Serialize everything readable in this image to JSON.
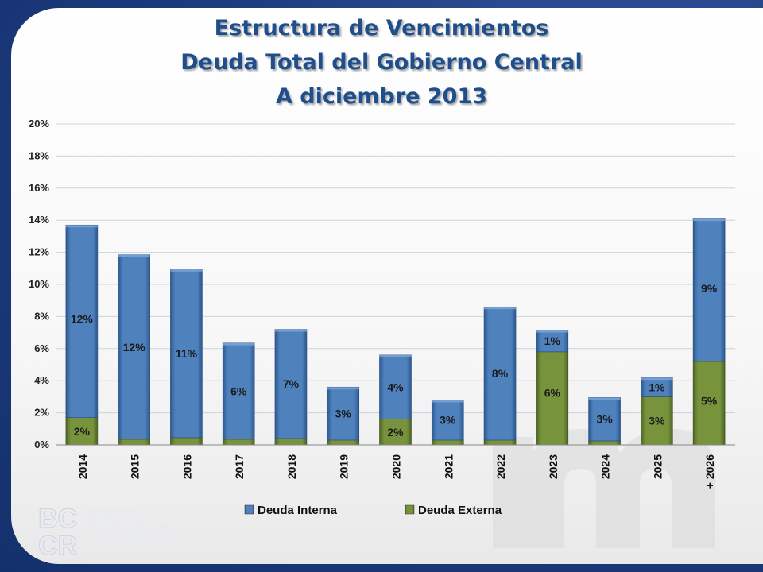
{
  "title_lines": [
    "Estructura de Vencimientos",
    "Deuda Total del Gobierno Central",
    "A diciembre 2013"
  ],
  "logo": {
    "mark_top": "BC",
    "mark_bottom": "CR",
    "name_lines": [
      "BANCO",
      "CENTRAL DE",
      "COSTA RICA"
    ]
  },
  "chart_data": {
    "type": "bar",
    "stacked": true,
    "categories": [
      "2014",
      "2015",
      "2016",
      "2017",
      "2018",
      "2019",
      "2020",
      "2021",
      "2022",
      "2023",
      "2024",
      "2025",
      "+ 2026"
    ],
    "series": [
      {
        "name": "Deuda Externa",
        "color": "#77933c",
        "values": [
          1.7,
          0.35,
          0.45,
          0.35,
          0.4,
          0.3,
          1.6,
          0.3,
          0.3,
          5.8,
          0.25,
          3.0,
          5.2
        ],
        "labels": [
          "2%",
          "",
          "",
          "",
          "",
          "",
          "2%",
          "",
          "",
          "6%",
          "",
          "3%",
          "5%"
        ]
      },
      {
        "name": "Deuda Interna",
        "color": "#4f81bd",
        "values": [
          12.0,
          11.5,
          10.5,
          6.0,
          6.8,
          3.3,
          4.0,
          2.5,
          8.3,
          1.35,
          2.7,
          1.2,
          8.9
        ],
        "labels": [
          "12%",
          "12%",
          "11%",
          "6%",
          "7%",
          "3%",
          "4%",
          "3%",
          "8%",
          "1%",
          "3%",
          "1%",
          "9%"
        ]
      }
    ],
    "ylim": [
      0,
      20
    ],
    "yticks": [
      "0%",
      "2%",
      "4%",
      "6%",
      "8%",
      "10%",
      "12%",
      "14%",
      "16%",
      "18%",
      "20%"
    ],
    "grid": true,
    "legend_position": "bottom",
    "legend": [
      "Deuda Interna",
      "Deuda Externa"
    ]
  }
}
